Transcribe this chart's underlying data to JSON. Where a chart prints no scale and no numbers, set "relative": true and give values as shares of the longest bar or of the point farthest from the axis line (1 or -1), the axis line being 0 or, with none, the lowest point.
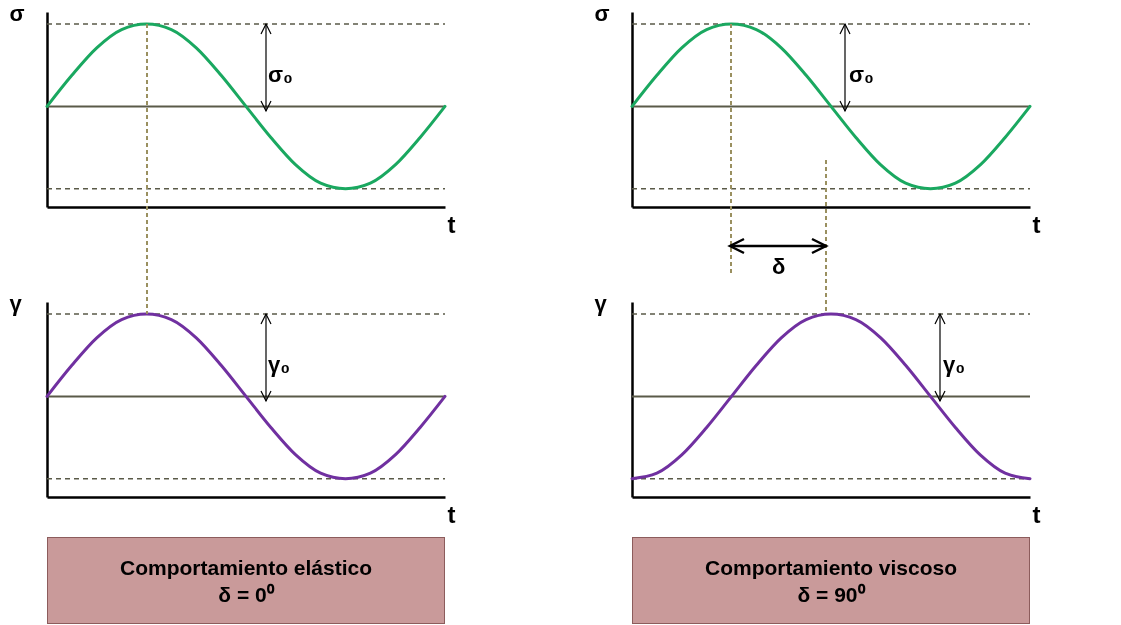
{
  "chart_data": [
    {
      "type": "line",
      "ylabel": "σ",
      "xlabel": "t",
      "relative": true,
      "categories": [
        null,
        null,
        null,
        null,
        null,
        null,
        null,
        null,
        null,
        null,
        null,
        null,
        null,
        null,
        null,
        null,
        null
      ],
      "series": [
        {
          "color": "#1aa860",
          "values": [
            0.55,
            0.72,
            0.87,
            0.97,
            1,
            0.97,
            0.87,
            0.72,
            0.55,
            0.38,
            0.23,
            0.13,
            0.1,
            0.13,
            0.23,
            0.38,
            0.55
          ]
        }
      ],
      "ref_lines": [
        {
          "axis": "y",
          "value": 1,
          "line_style": "dashed",
          "color": "#5a5a48"
        },
        {
          "axis": "y",
          "value": 0.55,
          "color": "#5a5a48"
        },
        {
          "axis": "y",
          "value": 0.1,
          "line_style": "dashed",
          "color": "#5a5a48"
        }
      ],
      "annotations": [
        "σ₀"
      ]
    },
    {
      "type": "line",
      "ylabel": "σ",
      "xlabel": "t",
      "relative": true,
      "categories": [
        null,
        null,
        null,
        null,
        null,
        null,
        null,
        null,
        null,
        null,
        null,
        null,
        null,
        null,
        null,
        null,
        null
      ],
      "series": [
        {
          "color": "#1aa860",
          "values": [
            0.55,
            0.72,
            0.87,
            0.97,
            1,
            0.97,
            0.87,
            0.72,
            0.55,
            0.38,
            0.23,
            0.13,
            0.1,
            0.13,
            0.23,
            0.38,
            0.55
          ]
        }
      ],
      "ref_lines": [
        {
          "axis": "y",
          "value": 1,
          "line_style": "dashed",
          "color": "#5a5a48"
        },
        {
          "axis": "y",
          "value": 0.55,
          "color": "#5a5a48"
        },
        {
          "axis": "y",
          "value": 0.1,
          "line_style": "dashed",
          "color": "#5a5a48"
        }
      ],
      "annotations": [
        "σ₀",
        "δ"
      ]
    },
    {
      "type": "line",
      "ylabel": "γ",
      "xlabel": "t",
      "relative": true,
      "categories": [
        null,
        null,
        null,
        null,
        null,
        null,
        null,
        null,
        null,
        null,
        null,
        null,
        null,
        null,
        null,
        null,
        null
      ],
      "series": [
        {
          "color": "#7030a0",
          "values": [
            0.55,
            0.72,
            0.87,
            0.97,
            1,
            0.97,
            0.87,
            0.72,
            0.55,
            0.38,
            0.23,
            0.13,
            0.1,
            0.13,
            0.23,
            0.38,
            0.55
          ]
        }
      ],
      "ref_lines": [
        {
          "axis": "y",
          "value": 1,
          "line_style": "dashed",
          "color": "#5a5a48"
        },
        {
          "axis": "y",
          "value": 0.55,
          "color": "#5a5a48"
        },
        {
          "axis": "y",
          "value": 0.1,
          "line_style": "dashed",
          "color": "#5a5a48"
        }
      ],
      "annotations": [
        "γ₀",
        "Comportamiento elástico",
        "δ = 0⁰"
      ]
    },
    {
      "type": "line",
      "ylabel": "γ",
      "xlabel": "t",
      "relative": true,
      "categories": [
        null,
        null,
        null,
        null,
        null,
        null,
        null,
        null,
        null,
        null,
        null,
        null,
        null,
        null,
        null,
        null,
        null
      ],
      "series": [
        {
          "color": "#7030a0",
          "values": [
            0.1,
            0.13,
            0.23,
            0.38,
            0.55,
            0.72,
            0.87,
            0.97,
            1,
            0.97,
            0.87,
            0.72,
            0.55,
            0.38,
            0.23,
            0.13,
            0.1
          ]
        }
      ],
      "ref_lines": [
        {
          "axis": "y",
          "value": 1,
          "line_style": "dashed",
          "color": "#5a5a48"
        },
        {
          "axis": "y",
          "value": 0.55,
          "color": "#5a5a48"
        },
        {
          "axis": "y",
          "value": 0.1,
          "line_style": "dashed",
          "color": "#5a5a48"
        }
      ],
      "annotations": [
        "γ₀",
        "Comportamiento viscoso",
        "δ = 90⁰"
      ]
    }
  ]
}
